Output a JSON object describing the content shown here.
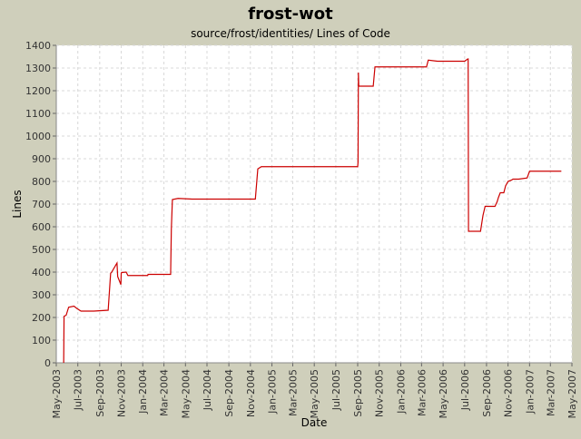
{
  "chart_data": {
    "type": "line",
    "title": "frost-wot",
    "subtitle": "source/frost/identities/ Lines of Code",
    "xlabel": "Date",
    "ylabel": "Lines",
    "ylim": [
      0,
      1400
    ],
    "xlim": [
      "2003-05-01",
      "2007-05-01"
    ],
    "grid": true,
    "y_ticks": [
      0,
      100,
      200,
      300,
      400,
      500,
      600,
      700,
      800,
      900,
      1000,
      1100,
      1200,
      1300,
      1400
    ],
    "x_ticks": [
      {
        "date": "2003-05-01",
        "label": "May-2003"
      },
      {
        "date": "2003-07-01",
        "label": "Jul-2003"
      },
      {
        "date": "2003-09-01",
        "label": "Sep-2003"
      },
      {
        "date": "2003-11-01",
        "label": "Nov-2003"
      },
      {
        "date": "2004-01-01",
        "label": "Jan-2004"
      },
      {
        "date": "2004-03-01",
        "label": "Mar-2004"
      },
      {
        "date": "2004-05-01",
        "label": "May-2004"
      },
      {
        "date": "2004-07-01",
        "label": "Jul-2004"
      },
      {
        "date": "2004-09-01",
        "label": "Sep-2004"
      },
      {
        "date": "2004-11-01",
        "label": "Nov-2004"
      },
      {
        "date": "2005-01-01",
        "label": "Jan-2005"
      },
      {
        "date": "2005-03-01",
        "label": "Mar-2005"
      },
      {
        "date": "2005-05-01",
        "label": "May-2005"
      },
      {
        "date": "2005-07-01",
        "label": "Jul-2005"
      },
      {
        "date": "2005-09-01",
        "label": "Sep-2005"
      },
      {
        "date": "2005-11-01",
        "label": "Nov-2005"
      },
      {
        "date": "2006-01-01",
        "label": "Jan-2006"
      },
      {
        "date": "2006-03-01",
        "label": "Mar-2006"
      },
      {
        "date": "2006-05-01",
        "label": "May-2006"
      },
      {
        "date": "2006-07-01",
        "label": "Jul-2006"
      },
      {
        "date": "2006-09-01",
        "label": "Sep-2006"
      },
      {
        "date": "2006-11-01",
        "label": "Nov-2006"
      },
      {
        "date": "2007-01-01",
        "label": "Jan-2007"
      },
      {
        "date": "2007-03-01",
        "label": "Mar-2007"
      },
      {
        "date": "2007-05-01",
        "label": "May-2007"
      }
    ],
    "line_color": "#cc0000",
    "series": [
      {
        "x": [
          "2003-05-22",
          "2003-05-23",
          "2003-05-29",
          "2003-06-05",
          "2003-06-20",
          "2003-06-28",
          "2003-07-10",
          "2003-08-15",
          "2003-09-25",
          "2003-10-02",
          "2003-10-05",
          "2003-10-20",
          "2003-10-22",
          "2003-10-31",
          "2003-11-01",
          "2003-11-02",
          "2003-11-15",
          "2003-11-20",
          "2004-01-15",
          "2004-01-16",
          "2004-03-20",
          "2004-03-22",
          "2004-03-25",
          "2004-04-10",
          "2004-05-20",
          "2004-07-01",
          "2004-11-15",
          "2004-11-22",
          "2004-12-02",
          "2005-03-01",
          "2005-06-01",
          "2005-08-30",
          "2005-09-01",
          "2005-09-02",
          "2005-09-03",
          "2005-09-04",
          "2005-10-15",
          "2005-10-20",
          "2006-01-01",
          "2006-03-15",
          "2006-03-20",
          "2006-04-15",
          "2006-04-20",
          "2006-07-01",
          "2006-07-10",
          "2006-07-11",
          "2006-07-12",
          "2006-08-15",
          "2006-08-18",
          "2006-08-22",
          "2006-08-25",
          "2006-08-28",
          "2006-09-25",
          "2006-10-01",
          "2006-10-05",
          "2006-10-10",
          "2006-10-20",
          "2006-10-25",
          "2006-11-01",
          "2006-11-10",
          "2006-11-15",
          "2006-11-25",
          "2006-12-01",
          "2006-12-25",
          "2007-01-01",
          "2007-01-15",
          "2007-04-01"
        ],
        "y": [
          0,
          205,
          210,
          245,
          250,
          240,
          228,
          228,
          232,
          395,
          400,
          440,
          380,
          345,
          395,
          398,
          400,
          385,
          385,
          390,
          390,
          590,
          720,
          725,
          722,
          722,
          722,
          855,
          865,
          865,
          865,
          865,
          865,
          885,
          1280,
          1220,
          1220,
          1305,
          1305,
          1305,
          1335,
          1330,
          1330,
          1330,
          1340,
          1340,
          580,
          580,
          610,
          650,
          670,
          690,
          690,
          710,
          730,
          750,
          750,
          780,
          800,
          805,
          810,
          810,
          810,
          815,
          845,
          845,
          845
        ]
      }
    ]
  }
}
